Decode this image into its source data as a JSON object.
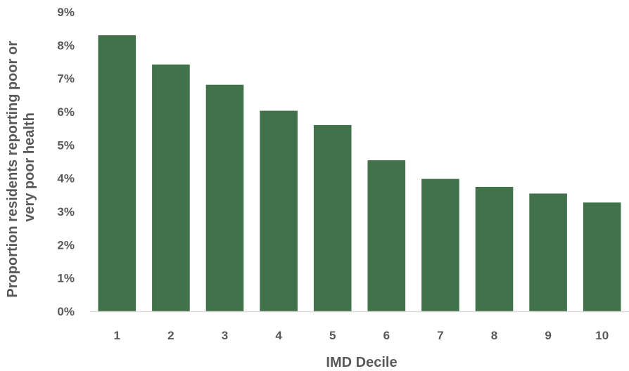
{
  "chart_data": {
    "type": "bar",
    "categories": [
      "1",
      "2",
      "3",
      "4",
      "5",
      "6",
      "7",
      "8",
      "9",
      "10"
    ],
    "values": [
      8.3,
      7.42,
      6.81,
      6.03,
      5.6,
      4.54,
      3.98,
      3.74,
      3.54,
      3.27
    ],
    "value_unit": "%",
    "xlabel": "IMD Decile",
    "ylabel_lines": [
      "Proportion residents reporting poor or",
      "very  poor health"
    ],
    "ylim": [
      0,
      9
    ],
    "yticks": [
      "0%",
      "1%",
      "2%",
      "3%",
      "4%",
      "5%",
      "6%",
      "7%",
      "8%",
      "9%"
    ],
    "grid": false,
    "legend": "none",
    "colors": {
      "bar": "#41724A",
      "axis": "#D9D9D9",
      "text": "#595959"
    }
  }
}
